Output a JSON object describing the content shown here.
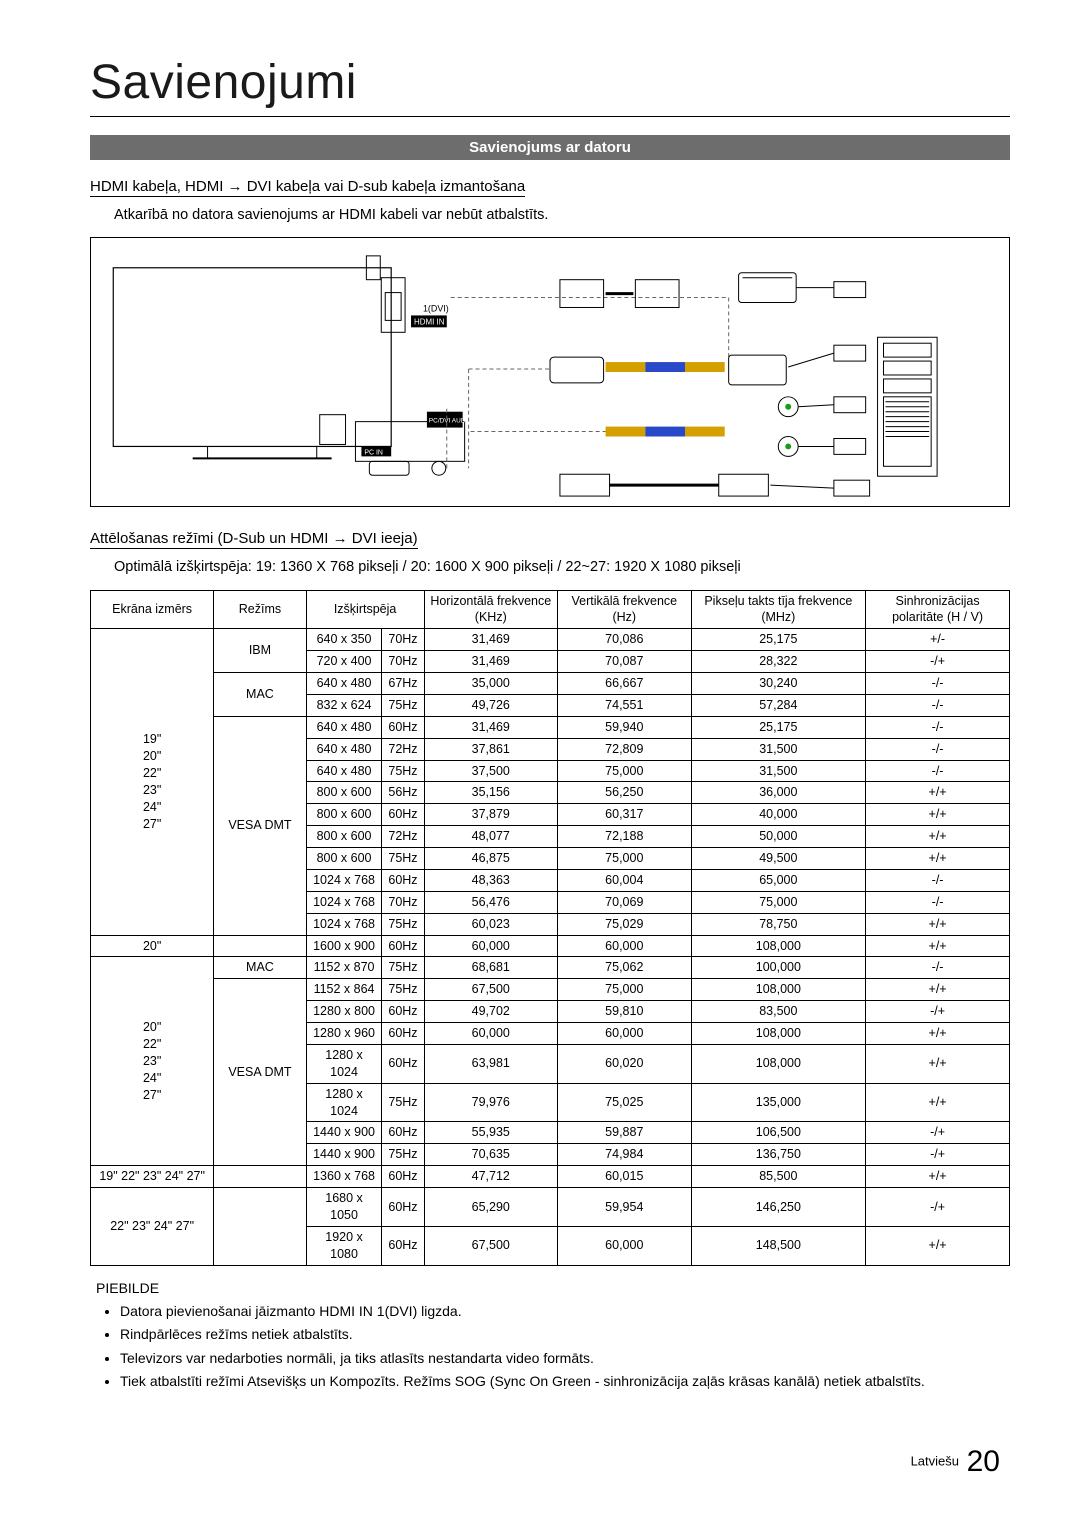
{
  "page": {
    "title": "Savienojumi",
    "section_banner": "Savienojums ar datoru",
    "sub1": "HDMI kabeļa, HDMI → DVI kabeļa vai D-sub kabeļa izmantošana",
    "sub1_body": "Atkarībā no datora savienojums ar HDMI kabeli var nebūt atbalstīts.",
    "sub2": "Attēlošanas režīmi (D-Sub un HDMI → DVI ieeja)",
    "sub2_body": "Optimālā izšķirtspēja: 19: 1360 X 768 pikseļi / 20: 1600 X 900 pikseļi / 22~27: 1920 X 1080 pikseļi",
    "notes_head": "PIEBILDE",
    "notes": [
      "Datora pievienošanai jāizmanto HDMI IN 1(DVI) ligzda.",
      "Rindpārlēces režīms netiek atbalstīts.",
      "Televizors var nedarboties normāli, ja tiks atlasīts nestandarta video formāts.",
      "Tiek atbalstīti režīmi Atsevišķs un Kompozīts. Režīms SOG (Sync On Green - sinhronizācija zaļās krāsas kanālā) netiek atbalstīts."
    ],
    "footer_lang": "Latviešu",
    "footer_page": "20"
  },
  "table": {
    "headers": {
      "size": "Ekrāna izmērs",
      "mode": "Režīms",
      "resolution": "Izšķirtspēja",
      "hfreq": "Horizontālā frekvence (KHz)",
      "vfreq": "Vertikālā frekvence (Hz)",
      "pfreq": "Pikseļu takts tīja frekvence (MHz)",
      "polarity": "Sinhronizācijas polaritāte (H / V)"
    },
    "sizes": {
      "g1": "19\"\n20\"\n22\"\n23\"\n24\"\n27\"",
      "g2": "20\"",
      "g3": "20\"\n22\"\n23\"\n24\"\n27\"",
      "g4": "19\" 22\" 23\" 24\" 27\"",
      "g5": "22\" 23\" 24\" 27\""
    },
    "modes": {
      "ibm": "IBM",
      "mac": "MAC",
      "vesa": "VESA DMT"
    },
    "rows": [
      [
        "640 x 350",
        "70Hz",
        "31,469",
        "70,086",
        "25,175",
        "+/-"
      ],
      [
        "720 x 400",
        "70Hz",
        "31,469",
        "70,087",
        "28,322",
        "-/+"
      ],
      [
        "640 x 480",
        "67Hz",
        "35,000",
        "66,667",
        "30,240",
        "-/-"
      ],
      [
        "832 x 624",
        "75Hz",
        "49,726",
        "74,551",
        "57,284",
        "-/-"
      ],
      [
        "640 x 480",
        "60Hz",
        "31,469",
        "59,940",
        "25,175",
        "-/-"
      ],
      [
        "640 x 480",
        "72Hz",
        "37,861",
        "72,809",
        "31,500",
        "-/-"
      ],
      [
        "640 x 480",
        "75Hz",
        "37,500",
        "75,000",
        "31,500",
        "-/-"
      ],
      [
        "800 x 600",
        "56Hz",
        "35,156",
        "56,250",
        "36,000",
        "+/+"
      ],
      [
        "800 x 600",
        "60Hz",
        "37,879",
        "60,317",
        "40,000",
        "+/+"
      ],
      [
        "800 x 600",
        "72Hz",
        "48,077",
        "72,188",
        "50,000",
        "+/+"
      ],
      [
        "800 x 600",
        "75Hz",
        "46,875",
        "75,000",
        "49,500",
        "+/+"
      ],
      [
        "1024 x 768",
        "60Hz",
        "48,363",
        "60,004",
        "65,000",
        "-/-"
      ],
      [
        "1024 x 768",
        "70Hz",
        "56,476",
        "70,069",
        "75,000",
        "-/-"
      ],
      [
        "1024 x 768",
        "75Hz",
        "60,023",
        "75,029",
        "78,750",
        "+/+"
      ],
      [
        "1600 x 900",
        "60Hz",
        "60,000",
        "60,000",
        "108,000",
        "+/+"
      ],
      [
        "1152 x 870",
        "75Hz",
        "68,681",
        "75,062",
        "100,000",
        "-/-"
      ],
      [
        "1152 x 864",
        "75Hz",
        "67,500",
        "75,000",
        "108,000",
        "+/+"
      ],
      [
        "1280 x 800",
        "60Hz",
        "49,702",
        "59,810",
        "83,500",
        "-/+"
      ],
      [
        "1280 x 960",
        "60Hz",
        "60,000",
        "60,000",
        "108,000",
        "+/+"
      ],
      [
        "1280 x 1024",
        "60Hz",
        "63,981",
        "60,020",
        "108,000",
        "+/+"
      ],
      [
        "1280 x 1024",
        "75Hz",
        "79,976",
        "75,025",
        "135,000",
        "+/+"
      ],
      [
        "1440 x 900",
        "60Hz",
        "55,935",
        "59,887",
        "106,500",
        "-/+"
      ],
      [
        "1440 x 900",
        "75Hz",
        "70,635",
        "74,984",
        "136,750",
        "-/+"
      ],
      [
        "1360 x 768",
        "60Hz",
        "47,712",
        "60,015",
        "85,500",
        "+/+"
      ],
      [
        "1680 x 1050",
        "60Hz",
        "65,290",
        "59,954",
        "146,250",
        "-/+"
      ],
      [
        "1920 x 1080",
        "60Hz",
        "67,500",
        "60,000",
        "148,500",
        "+/+"
      ]
    ]
  },
  "diagram_labels": {
    "hdmi_port": "1(DVI)",
    "hdmi_in": "HDMI IN",
    "pcin": "PC IN",
    "audio": "PC/DVI AUDIO IN"
  }
}
